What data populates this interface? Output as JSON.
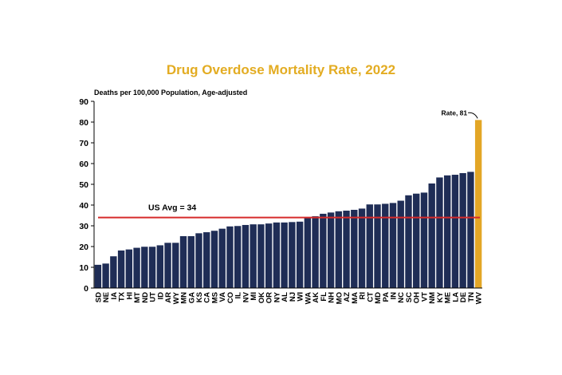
{
  "chart_data": {
    "type": "bar",
    "title": "Drug Overdose Mortality Rate, 2022",
    "ylabel": "Deaths per 100,000 Population, Age-adjusted",
    "xlabel": "",
    "ylim": [
      0,
      90
    ],
    "yticks": [
      0,
      10,
      20,
      30,
      40,
      50,
      60,
      70,
      80,
      90
    ],
    "grid": false,
    "categories": [
      "SD",
      "NE",
      "IA",
      "TX",
      "HI",
      "MT",
      "ND",
      "UT",
      "ID",
      "AR",
      "WY",
      "MN",
      "GA",
      "KS",
      "CA",
      "MS",
      "VA",
      "CO",
      "IL",
      "NV",
      "MI",
      "OK",
      "OR",
      "NY",
      "AL",
      "NJ",
      "WI",
      "WA",
      "AK",
      "FL",
      "NH",
      "MO",
      "AZ",
      "MA",
      "RI",
      "CT",
      "MD",
      "PA",
      "IN",
      "NC",
      "SC",
      "OH",
      "VT",
      "NM",
      "KY",
      "ME",
      "LA",
      "DE",
      "TN",
      "WV"
    ],
    "values": [
      11.2,
      11.8,
      15.3,
      18.1,
      18.6,
      19.4,
      19.9,
      19.9,
      20.6,
      21.8,
      21.8,
      25.0,
      25.0,
      26.4,
      26.9,
      27.6,
      28.6,
      29.7,
      29.9,
      30.4,
      30.7,
      30.7,
      31.1,
      31.6,
      31.6,
      31.8,
      32.0,
      33.9,
      34.6,
      35.8,
      36.4,
      37.0,
      37.3,
      37.7,
      38.3,
      40.3,
      40.3,
      40.6,
      41.0,
      42.1,
      44.7,
      45.5,
      46.0,
      50.4,
      53.3,
      54.3,
      54.6,
      55.4,
      56.0,
      81.0
    ],
    "colors": {
      "bar": "#1f2d56",
      "highlight": "#e3a626",
      "avg_line": "#d62b2b"
    },
    "highlight_category": "WV",
    "reference_line": {
      "value": 34,
      "label": "US Avg = 34"
    },
    "annotation": {
      "text": "Rate, 81",
      "category": "WV"
    }
  }
}
